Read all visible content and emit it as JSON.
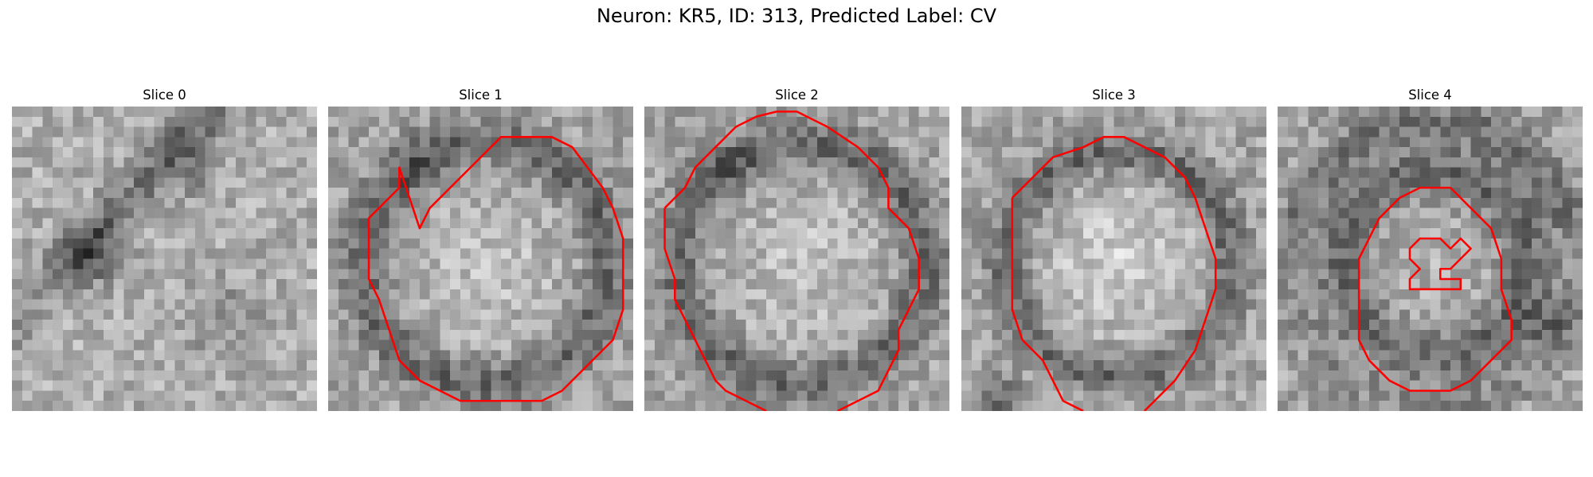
{
  "figure": {
    "title": "Neuron: KR5, ID: 313, Predicted Label: CV",
    "contour_color": "#ff0000",
    "colormap": "grayscale",
    "panels": [
      {
        "label": "Slice 0",
        "seed": 11,
        "pattern": "cross",
        "has_contour": false
      },
      {
        "label": "Slice 1",
        "seed": 23,
        "pattern": "ring-large",
        "has_contour": true
      },
      {
        "label": "Slice 2",
        "seed": 37,
        "pattern": "ring-large",
        "has_contour": true
      },
      {
        "label": "Slice 3",
        "seed": 51,
        "pattern": "ring-bright",
        "has_contour": true
      },
      {
        "label": "Slice 4",
        "seed": 67,
        "pattern": "ring-small",
        "has_contour": true
      }
    ]
  }
}
